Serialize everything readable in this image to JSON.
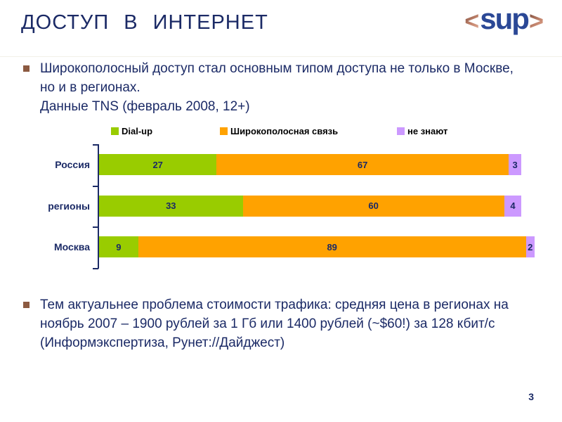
{
  "slide": {
    "title": "ДОСТУП В ИНТЕРНЕТ",
    "page_number": "3"
  },
  "logo": {
    "left_bracket": "<",
    "word": "sup",
    "right_bracket": ">"
  },
  "bullets": [
    {
      "lines": [
        "Широкополосный доступ стал основным типом доступа не только в Москве,",
        "но и в регионах.",
        "Данные TNS (февраль 2008, 12+)"
      ]
    },
    {
      "lines": [
        "Тем актуальнее проблема стоимости трафика: средняя цена в регионах на",
        "ноябрь 2007 – 1900 рублей за 1 Гб или 1400 рублей (~$60!) за 128 кбит/с",
        "(Информэкспертиза, Рунет://Дайджест)"
      ]
    }
  ],
  "chart_data": {
    "type": "bar",
    "orientation": "horizontal",
    "stacked": true,
    "categories": [
      "Россия",
      "регионы",
      "Москва"
    ],
    "series": [
      {
        "name": "Dial-up",
        "color": "#99cc00",
        "values": [
          27,
          33,
          9
        ]
      },
      {
        "name": "Широкополосная связь",
        "color": "#ffa200",
        "values": [
          67,
          60,
          89
        ]
      },
      {
        "name": "не знают",
        "color": "#cc99ff",
        "values": [
          3,
          4,
          2
        ]
      }
    ],
    "xlim": [
      0,
      100
    ],
    "grid": false,
    "legend_position": "top",
    "value_label_color": "#1b2a66",
    "axis_color": "#1b2a66"
  },
  "colors": {
    "title_text": "#1b2a66",
    "body_text": "#1b2a66",
    "bullet_marker": "#8c5a41",
    "logo_word": "#2b4896",
    "logo_brackets": "#b2705a"
  }
}
